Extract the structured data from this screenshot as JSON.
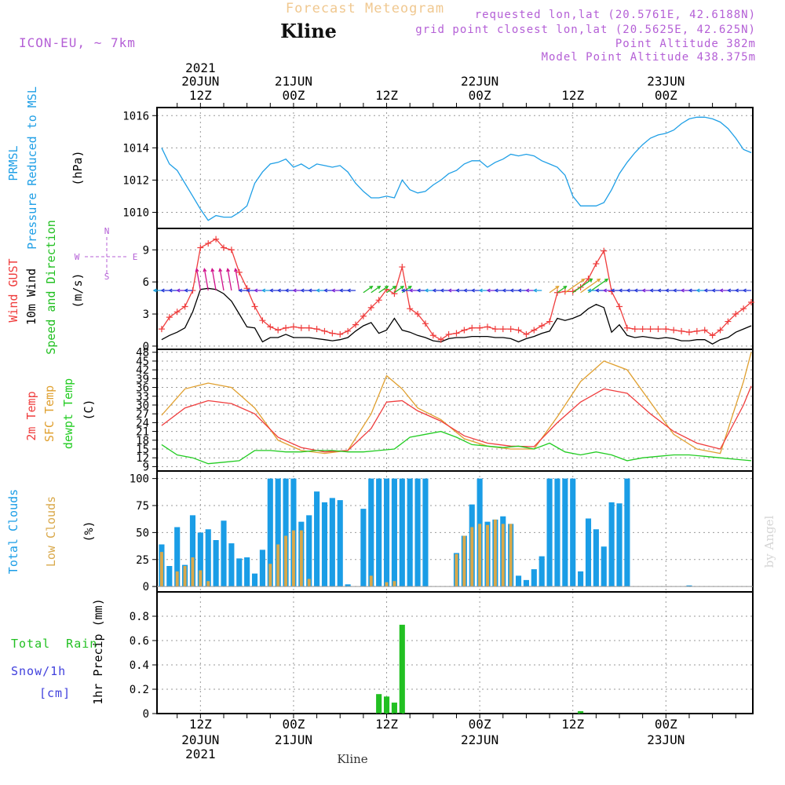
{
  "header": {
    "title": "Forecast Meteogram",
    "location": "Kline",
    "model": "ICON-EU, ~ 7km",
    "requested": "requested lon,lat (20.5761E, 42.6188N)",
    "closest": "grid point closest lon,lat (20.5625E, 42.625N)",
    "point_alt": "Point Altitude 382m",
    "model_alt": "Model Point Altitude 438.375m",
    "footer_location": "Kline",
    "watermark": "by Angel",
    "compass": [
      "N",
      "S",
      "W",
      "E"
    ]
  },
  "colors": {
    "pressure": "#1f9fe6",
    "gust": "#ef3d3d",
    "wind": "#000000",
    "temp2m": "#ef3d3d",
    "sfc": "#e0a030",
    "dewpt": "#22cc22",
    "total_clouds": "#1a9de6",
    "low_clouds": "#d9a84a",
    "rain": "#22c022",
    "snow": "#4040dd",
    "header_purple": "#b45fd6"
  },
  "time_axis": {
    "top_labels": [
      {
        "line1": "2021",
        "line2": "20JUN",
        "line3": "12Z",
        "hour": 12
      },
      {
        "line1": "",
        "line2": "21JUN",
        "line3": "00Z",
        "hour": 24
      },
      {
        "line1": "",
        "line2": "",
        "line3": "12Z",
        "hour": 36
      },
      {
        "line1": "",
        "line2": "22JUN",
        "line3": "00Z",
        "hour": 48
      },
      {
        "line1": "",
        "line2": "",
        "line3": "12Z",
        "hour": 60
      },
      {
        "line1": "",
        "line2": "23JUN",
        "line3": "00Z",
        "hour": 72
      }
    ],
    "bottom_labels": [
      {
        "line1": "12Z",
        "line2": "20JUN",
        "line3": "2021",
        "hour": 12
      },
      {
        "line1": "00Z",
        "line2": "21JUN",
        "line3": "",
        "hour": 24
      },
      {
        "line1": "12Z",
        "line2": "",
        "line3": "",
        "hour": 36
      },
      {
        "line1": "00Z",
        "line2": "22JUN",
        "line3": "",
        "hour": 48
      },
      {
        "line1": "12Z",
        "line2": "",
        "line3": "",
        "hour": 60
      },
      {
        "line1": "00Z",
        "line2": "23JUN",
        "line3": "",
        "hour": 72
      }
    ]
  },
  "chart_data": [
    {
      "type": "line",
      "panel": "pressure",
      "labels": [
        "PRMSL",
        "Pressure Reduced to MSL",
        "(hPa)"
      ],
      "ylim": [
        1009,
        1016.5
      ],
      "yticks": [
        1010,
        1012,
        1014,
        1016
      ],
      "series": [
        {
          "name": "PRMSL",
          "x": [
            7,
            8,
            9,
            10,
            11,
            12,
            13,
            14,
            15,
            16,
            17,
            18,
            19,
            20,
            21,
            22,
            23,
            24,
            25,
            26,
            27,
            28,
            29,
            30,
            31,
            32,
            33,
            34,
            35,
            36,
            37,
            38,
            39,
            40,
            41,
            42,
            43,
            44,
            45,
            46,
            47,
            48,
            49,
            50,
            51,
            52,
            53,
            54,
            55,
            56,
            57,
            58,
            59,
            60,
            61,
            62,
            63,
            64,
            65,
            66,
            67,
            68,
            69,
            70,
            71,
            72,
            73,
            74,
            75,
            76,
            77,
            78,
            79,
            80,
            81,
            82,
            83
          ],
          "values": [
            1014.0,
            1013.0,
            1012.6,
            1011.8,
            1011.0,
            1010.2,
            1009.5,
            1009.8,
            1009.7,
            1009.7,
            1010.0,
            1010.4,
            1011.8,
            1012.5,
            1013.0,
            1013.1,
            1013.3,
            1012.8,
            1013.0,
            1012.7,
            1013.0,
            1012.9,
            1012.8,
            1012.9,
            1012.5,
            1011.8,
            1011.3,
            1010.9,
            1010.9,
            1011.0,
            1010.9,
            1012.0,
            1011.4,
            1011.2,
            1011.3,
            1011.7,
            1012.0,
            1012.4,
            1012.6,
            1013.0,
            1013.2,
            1013.2,
            1012.8,
            1013.1,
            1013.3,
            1013.6,
            1013.5,
            1013.6,
            1013.5,
            1013.2,
            1013.0,
            1012.8,
            1012.3,
            1011.0,
            1010.4,
            1010.4,
            1010.4,
            1010.6,
            1011.4,
            1012.4,
            1013.1,
            1013.7,
            1014.2,
            1014.6,
            1014.8,
            1014.9,
            1015.1,
            1015.5,
            1015.8,
            1015.9,
            1015.9,
            1015.8,
            1015.6,
            1015.2,
            1014.6,
            1013.9,
            1013.7
          ]
        }
      ]
    },
    {
      "type": "line",
      "panel": "wind",
      "labels": [
        "Wind GUST",
        "10m Wind",
        "Speed and Direction",
        "(m/s)"
      ],
      "ylim": [
        -0.3,
        11.0
      ],
      "yticks": [
        0,
        3,
        6,
        9
      ],
      "series": [
        {
          "name": "Wind GUST",
          "x": [
            7,
            8,
            9,
            10,
            11,
            12,
            13,
            14,
            15,
            16,
            17,
            18,
            19,
            20,
            21,
            22,
            23,
            24,
            25,
            26,
            27,
            28,
            29,
            30,
            31,
            32,
            33,
            34,
            35,
            36,
            37,
            38,
            39,
            40,
            41,
            42,
            43,
            44,
            45,
            46,
            47,
            48,
            49,
            50,
            51,
            52,
            53,
            54,
            55,
            56,
            57,
            58,
            59,
            60,
            61,
            62,
            63,
            64,
            65,
            66,
            67,
            68,
            69,
            70,
            71,
            72,
            73,
            74,
            75,
            76,
            77,
            78,
            79,
            80,
            81,
            82,
            83
          ],
          "values": [
            1.6,
            2.7,
            3.2,
            3.7,
            5.2,
            9.2,
            9.6,
            10.0,
            9.2,
            9.0,
            6.9,
            5.4,
            3.7,
            2.4,
            1.8,
            1.5,
            1.7,
            1.8,
            1.7,
            1.7,
            1.6,
            1.4,
            1.2,
            1.1,
            1.4,
            2.0,
            2.8,
            3.6,
            4.3,
            5.3,
            4.9,
            7.4,
            3.5,
            3.0,
            2.1,
            1.0,
            0.6,
            1.1,
            1.2,
            1.5,
            1.7,
            1.7,
            1.8,
            1.6,
            1.6,
            1.6,
            1.5,
            1.1,
            1.5,
            1.9,
            2.3,
            5.0,
            5.1,
            5.1,
            5.5,
            6.3,
            7.7,
            8.9,
            5.1,
            3.7,
            1.7,
            1.6,
            1.6,
            1.6,
            1.6,
            1.6,
            1.5,
            1.4,
            1.3,
            1.4,
            1.5,
            1.0,
            1.5,
            2.3,
            3.0,
            3.5,
            4.1
          ]
        },
        {
          "name": "10m Wind",
          "x": [
            7,
            8,
            9,
            10,
            11,
            12,
            13,
            14,
            15,
            16,
            17,
            18,
            19,
            20,
            21,
            22,
            23,
            24,
            25,
            26,
            27,
            28,
            29,
            30,
            31,
            32,
            33,
            34,
            35,
            36,
            37,
            38,
            39,
            40,
            41,
            42,
            43,
            44,
            45,
            46,
            47,
            48,
            49,
            50,
            51,
            52,
            53,
            54,
            55,
            56,
            57,
            58,
            59,
            60,
            61,
            62,
            63,
            64,
            65,
            66,
            67,
            68,
            69,
            70,
            71,
            72,
            73,
            74,
            75,
            76,
            77,
            78,
            79,
            80,
            81,
            82,
            83
          ],
          "values": [
            0.6,
            1.0,
            1.3,
            1.7,
            3.2,
            5.3,
            5.4,
            5.3,
            4.9,
            4.2,
            3.0,
            1.8,
            1.7,
            0.4,
            0.8,
            0.8,
            1.1,
            0.8,
            0.8,
            0.8,
            0.7,
            0.6,
            0.5,
            0.6,
            0.8,
            1.4,
            1.9,
            2.2,
            1.2,
            1.5,
            2.6,
            1.5,
            1.3,
            1.0,
            0.8,
            0.5,
            0.4,
            0.7,
            0.8,
            0.8,
            0.9,
            0.9,
            0.9,
            0.8,
            0.8,
            0.7,
            0.4,
            0.7,
            0.9,
            1.2,
            1.4,
            2.6,
            2.4,
            2.6,
            2.9,
            3.5,
            3.9,
            3.6,
            1.3,
            2.0,
            1.0,
            0.8,
            0.9,
            0.8,
            0.7,
            0.8,
            0.7,
            0.5,
            0.5,
            0.6,
            0.6,
            0.2,
            0.6,
            0.8,
            1.3,
            1.6,
            1.9
          ]
        }
      ]
    },
    {
      "type": "line",
      "panel": "temperature",
      "labels": [
        "2m Temp",
        "SFC Temp",
        "dewpt Temp",
        "(C)"
      ],
      "ylim": [
        7.5,
        49
      ],
      "yticks": [
        9,
        12,
        15,
        18,
        21,
        24,
        27,
        30,
        33,
        36,
        39,
        42,
        45,
        48
      ],
      "series": [
        {
          "name": "2m Temp",
          "x": [
            7,
            10,
            13,
            16,
            19,
            22,
            25,
            28,
            31,
            34,
            36,
            38,
            40,
            43,
            46,
            49,
            52,
            55,
            58,
            61,
            64,
            67,
            70,
            73,
            76,
            79,
            82,
            83
          ],
          "values": [
            23.0,
            29.0,
            31.5,
            30.5,
            27.0,
            19.0,
            15.5,
            14.0,
            14.5,
            22.0,
            31.0,
            31.5,
            28.0,
            24.5,
            19.5,
            17.0,
            16.0,
            15.8,
            24.0,
            31.0,
            35.5,
            34.0,
            27.0,
            21.0,
            17.0,
            15.0,
            30.0,
            36.5
          ]
        },
        {
          "name": "SFC Temp",
          "x": [
            7,
            10,
            13,
            16,
            19,
            22,
            25,
            28,
            31,
            34,
            36,
            38,
            40,
            43,
            46,
            49,
            52,
            55,
            58,
            61,
            64,
            67,
            70,
            73,
            76,
            79,
            82,
            83
          ],
          "values": [
            26.5,
            35.5,
            37.5,
            36.0,
            29.0,
            18.0,
            14.5,
            13.5,
            14.5,
            27.0,
            40.0,
            35.5,
            29.0,
            25.0,
            18.5,
            16.0,
            15.0,
            15.0,
            26.0,
            38.0,
            45.0,
            42.0,
            31.0,
            20.0,
            15.0,
            13.5,
            38.0,
            48.0
          ]
        },
        {
          "name": "dewpt Temp",
          "x": [
            7,
            9,
            11,
            13,
            15,
            17,
            19,
            21,
            23,
            25,
            27,
            29,
            31,
            33,
            35,
            37,
            39,
            41,
            43,
            45,
            47,
            49,
            51,
            53,
            55,
            57,
            59,
            61,
            63,
            65,
            67,
            69,
            71,
            73,
            75,
            77,
            79,
            81,
            83
          ],
          "values": [
            16.5,
            13.0,
            12.0,
            10.0,
            10.5,
            11.0,
            14.5,
            14.5,
            14.0,
            14.0,
            14.5,
            14.5,
            14.0,
            14.0,
            14.5,
            15.0,
            19.0,
            20.0,
            21.0,
            19.0,
            16.5,
            16.0,
            15.5,
            16.0,
            15.0,
            17.0,
            14.0,
            13.0,
            14.0,
            13.0,
            11.0,
            12.0,
            12.5,
            13.0,
            13.0,
            12.5,
            12.0,
            11.5,
            11.0
          ]
        }
      ]
    },
    {
      "type": "bar",
      "panel": "clouds",
      "labels": [
        "Total Clouds",
        "Low Clouds",
        "(%)"
      ],
      "ylim": [
        -5,
        107
      ],
      "yticks": [
        0,
        25,
        50,
        75,
        100
      ],
      "x": [
        7,
        8,
        9,
        10,
        11,
        12,
        13,
        14,
        15,
        16,
        17,
        18,
        19,
        20,
        21,
        22,
        23,
        24,
        25,
        26,
        27,
        28,
        29,
        30,
        31,
        32,
        33,
        34,
        35,
        36,
        37,
        38,
        39,
        40,
        41,
        42,
        43,
        44,
        45,
        46,
        47,
        48,
        49,
        50,
        51,
        52,
        53,
        54,
        55,
        56,
        57,
        58,
        59,
        60,
        61,
        62,
        63,
        64,
        65,
        66,
        67,
        68,
        69,
        70,
        71,
        72,
        73,
        74,
        75,
        76,
        77,
        78,
        79,
        80,
        81,
        82,
        83
      ],
      "series": [
        {
          "name": "Total Clouds",
          "values": [
            39,
            19,
            55,
            20,
            66,
            50,
            53,
            43,
            61,
            40,
            26,
            27,
            12,
            34,
            100,
            100,
            100,
            100,
            60,
            66,
            88,
            78,
            82,
            80,
            2,
            0,
            72,
            100,
            100,
            100,
            100,
            100,
            100,
            100,
            100,
            0,
            0,
            0,
            31,
            47,
            76,
            100,
            60,
            62,
            65,
            58,
            10,
            6,
            16,
            28,
            100,
            100,
            100,
            100,
            14,
            63,
            53,
            37,
            78,
            77,
            100,
            0,
            0,
            0,
            0,
            0,
            0,
            0,
            1,
            0,
            0,
            0,
            0,
            0,
            0,
            0,
            0
          ]
        },
        {
          "name": "Low Clouds",
          "values": [
            32,
            0,
            14,
            19,
            27,
            15,
            5,
            0,
            0,
            0,
            0,
            0,
            0,
            0,
            21,
            39,
            47,
            52,
            52,
            7,
            0,
            0,
            0,
            0,
            0,
            0,
            0,
            10,
            0,
            4,
            5,
            0,
            0,
            0,
            0,
            0,
            0,
            0,
            30,
            47,
            55,
            58,
            57,
            62,
            58,
            58,
            0,
            0,
            0,
            0,
            0,
            0,
            0,
            0,
            0,
            0,
            0,
            0,
            0,
            0,
            0,
            0,
            0,
            0,
            0,
            0,
            0,
            0,
            0,
            0,
            0,
            0,
            0,
            0,
            0,
            0,
            0
          ]
        }
      ]
    },
    {
      "type": "bar",
      "panel": "precip",
      "labels": [
        "Total Rain",
        "Snow/1h",
        "[cm]",
        "1hr Precip (mm)"
      ],
      "ylim": [
        0,
        1.0
      ],
      "yticks": [
        0,
        0.2,
        0.4,
        0.6,
        0.8
      ],
      "x": [
        35,
        36,
        37,
        38,
        61
      ],
      "series": [
        {
          "name": "Total Rain",
          "values": [
            0.16,
            0.14,
            0.09,
            0.73,
            0.02
          ]
        }
      ]
    }
  ]
}
